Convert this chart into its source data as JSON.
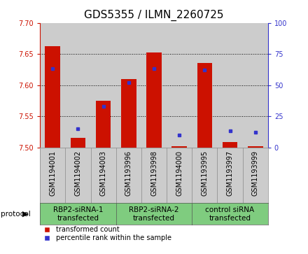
{
  "title": "GDS5355 / ILMN_2260725",
  "samples": [
    "GSM1194001",
    "GSM1194002",
    "GSM1194003",
    "GSM1193996",
    "GSM1193998",
    "GSM1194000",
    "GSM1193995",
    "GSM1193997",
    "GSM1193999"
  ],
  "red_values": [
    7.663,
    7.515,
    7.575,
    7.61,
    7.652,
    7.502,
    7.635,
    7.508,
    7.502
  ],
  "blue_values": [
    63,
    15,
    33,
    52,
    63,
    10,
    62,
    13,
    12
  ],
  "ylim_left": [
    7.5,
    7.7
  ],
  "ylim_right": [
    0,
    100
  ],
  "yticks_left": [
    7.5,
    7.55,
    7.6,
    7.65,
    7.7
  ],
  "yticks_right": [
    0,
    25,
    50,
    75,
    100
  ],
  "groups": [
    {
      "label": "RBP2-siRNA-1\ntransfected",
      "start": 0,
      "end": 3,
      "color": "#7FCC7F"
    },
    {
      "label": "RBP2-siRNA-2\ntransfected",
      "start": 3,
      "end": 6,
      "color": "#7FCC7F"
    },
    {
      "label": "control siRNA\ntransfected",
      "start": 6,
      "end": 9,
      "color": "#7FCC7F"
    }
  ],
  "bar_color": "#CC1100",
  "dot_color": "#3333CC",
  "bg_color": "#CCCCCC",
  "title_fontsize": 11,
  "tick_fontsize": 7,
  "label_fontsize": 7.5,
  "legend_fontsize": 7
}
